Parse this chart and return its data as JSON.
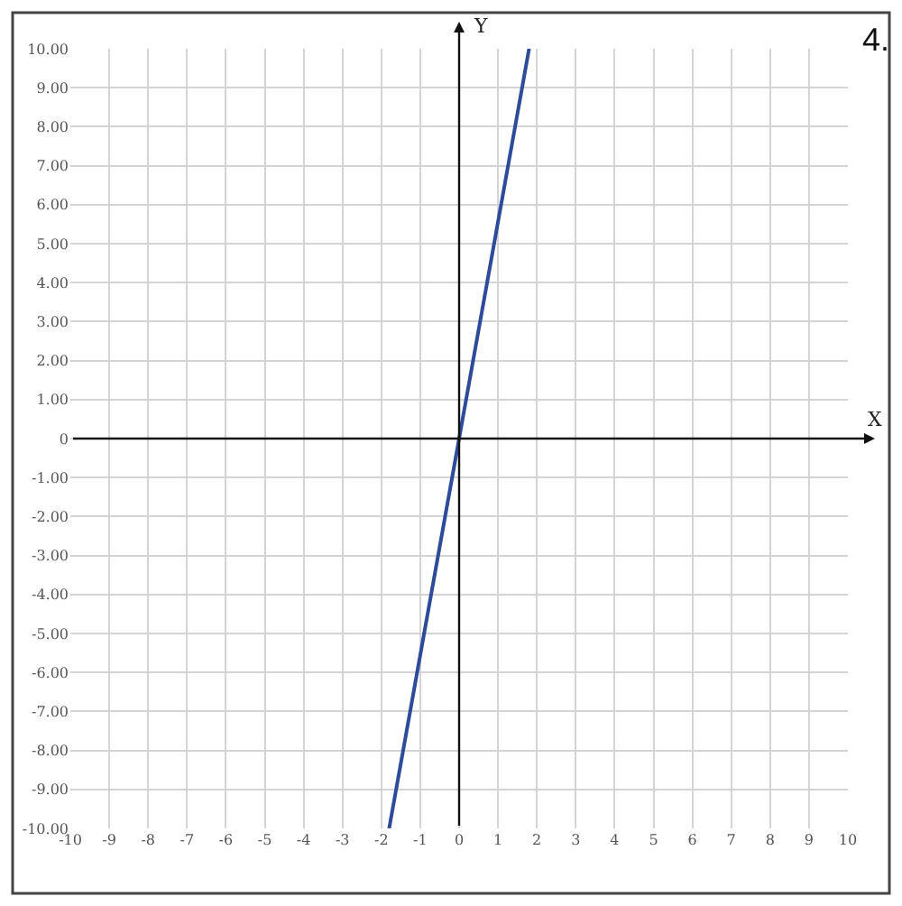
{
  "chart_data": {
    "type": "line",
    "xlabel": "X",
    "ylabel": "Y",
    "annotations": [
      "4."
    ],
    "x": [
      -1.8,
      0,
      1.8
    ],
    "series": [
      {
        "color": "#2e4a9a",
        "values": [
          -10,
          0,
          10
        ]
      }
    ],
    "xlim": [
      -10,
      10
    ],
    "ylim": [
      -10,
      10
    ],
    "xticks": [
      -10,
      -9,
      -8,
      -7,
      -6,
      -5,
      -4,
      -3,
      -2,
      -1,
      0,
      1,
      2,
      3,
      4,
      5,
      6,
      7,
      8,
      9,
      10
    ],
    "yticks": [
      {
        "value": 10,
        "label": "10.00"
      },
      {
        "value": 9,
        "label": "9.00"
      },
      {
        "value": 8,
        "label": "8.00"
      },
      {
        "value": 7,
        "label": "7.00"
      },
      {
        "value": 6,
        "label": "6.00"
      },
      {
        "value": 5,
        "label": "5.00"
      },
      {
        "value": 4,
        "label": "4.00"
      },
      {
        "value": 3,
        "label": "3.00"
      },
      {
        "value": 2,
        "label": "2.00"
      },
      {
        "value": 1,
        "label": "1.00"
      },
      {
        "value": 0,
        "label": "0"
      },
      {
        "value": -1,
        "label": "-1.00"
      },
      {
        "value": -2,
        "label": "-2.00"
      },
      {
        "value": -3,
        "label": "-3.00"
      },
      {
        "value": -4,
        "label": "-4.00"
      },
      {
        "value": -5,
        "label": "-5.00"
      },
      {
        "value": -6,
        "label": "-6.00"
      },
      {
        "value": -7,
        "label": "-7.00"
      },
      {
        "value": -8,
        "label": "-8.00"
      },
      {
        "value": -9,
        "label": "-9.00"
      },
      {
        "value": -10,
        "label": "-10.00"
      }
    ],
    "grid": true,
    "marker": "none",
    "line_style": "solid"
  }
}
